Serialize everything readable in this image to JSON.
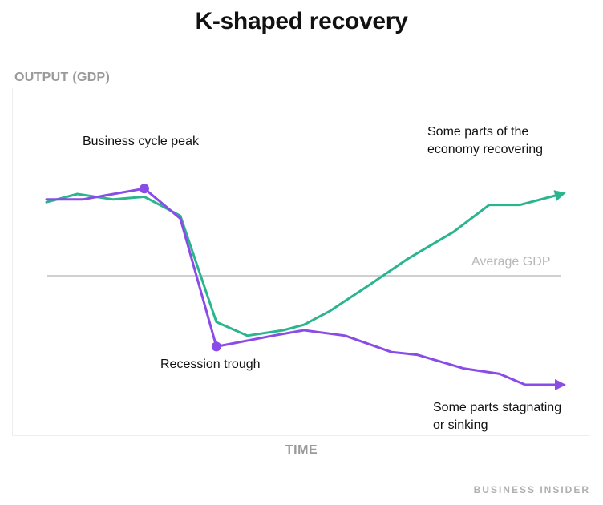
{
  "chart_data": {
    "type": "line",
    "title": "K-shaped recovery",
    "ylabel": "OUTPUT (GDP)",
    "xlabel": "TIME",
    "xlim": [
      0,
      100
    ],
    "ylim": [
      0,
      100
    ],
    "reference_line": {
      "label": "Average GDP",
      "y": 50
    },
    "series": [
      {
        "name": "Some parts of the economy recovering",
        "color": "#2bb58f",
        "points": [
          [
            0,
            77
          ],
          [
            6,
            80
          ],
          [
            13,
            78
          ],
          [
            19,
            79
          ],
          [
            26,
            72
          ],
          [
            33,
            33
          ],
          [
            39,
            28
          ],
          [
            46,
            30
          ],
          [
            50,
            32
          ],
          [
            55,
            37
          ],
          [
            63,
            47
          ],
          [
            70,
            56
          ],
          [
            79,
            66
          ],
          [
            86,
            76
          ],
          [
            92,
            76
          ],
          [
            100,
            80
          ]
        ]
      },
      {
        "name": "Some parts stagnating or sinking",
        "color": "#8a4ce6",
        "points": [
          [
            0,
            78
          ],
          [
            7,
            78
          ],
          [
            13,
            80
          ],
          [
            19,
            82
          ],
          [
            26,
            71
          ],
          [
            33,
            24
          ],
          [
            44,
            28
          ],
          [
            50,
            30
          ],
          [
            58,
            28
          ],
          [
            67,
            22
          ],
          [
            72,
            21
          ],
          [
            81,
            16
          ],
          [
            88,
            14
          ],
          [
            93,
            10
          ],
          [
            100,
            10
          ]
        ]
      }
    ],
    "annotations": [
      {
        "text": "Business cycle peak",
        "at": [
          19,
          82
        ],
        "marker": true,
        "series": 1
      },
      {
        "text": "Recession trough",
        "at": [
          33,
          24
        ],
        "marker": true,
        "series": 1
      },
      {
        "text": "Some parts of the economy recovering"
      },
      {
        "text": "Some parts stagnating or sinking"
      }
    ]
  },
  "labels": {
    "upper_l1": "Some parts of the",
    "upper_l2": "economy recovering",
    "lower_l1": "Some parts stagnating",
    "lower_l2": "or sinking",
    "peak": "Business cycle peak",
    "trough": "Recession trough"
  },
  "brand": "BUSINESS INSIDER"
}
